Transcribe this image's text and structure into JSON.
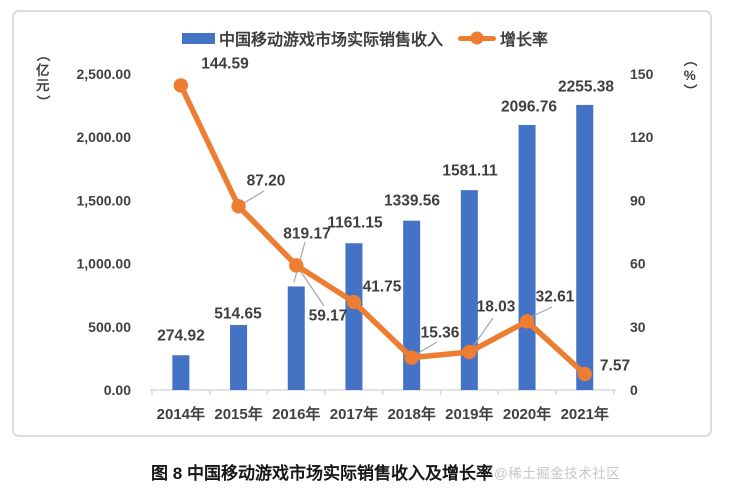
{
  "caption": "图 8 中国移动游戏市场实际销售收入及增长率",
  "watermark": "@稀土掘金技术社区",
  "chart_data": {
    "type": "combo",
    "title": "图 8 中国移动游戏市场实际销售收入及增长率",
    "categories": [
      "2014年",
      "2015年",
      "2016年",
      "2017年",
      "2018年",
      "2019年",
      "2020年",
      "2021年"
    ],
    "series": [
      {
        "name": "中国移动游戏市场实际销售收入",
        "type": "bar",
        "axis": "left",
        "color": "#4472C4",
        "values": [
          274.92,
          514.65,
          819.17,
          1161.15,
          1339.56,
          1581.11,
          2096.76,
          2255.38
        ]
      },
      {
        "name": "增长率",
        "type": "line",
        "axis": "right",
        "color": "#ED7D31",
        "values": [
          144.59,
          87.2,
          59.17,
          41.75,
          15.36,
          18.03,
          32.61,
          7.57
        ]
      }
    ],
    "left_axis": {
      "unit": "（亿元）",
      "min": 0,
      "max": 2500,
      "ticks": [
        "2,500.00",
        "2,000.00",
        "1,500.00",
        "1,000.00",
        "500.00",
        "0.00"
      ]
    },
    "right_axis": {
      "unit": "（%）",
      "min": 0,
      "max": 150,
      "ticks": [
        "150",
        "120",
        "90",
        "60",
        "30",
        "0"
      ]
    },
    "legend_position": "top",
    "grid": false,
    "data_labels": true,
    "colors": {
      "bar": "#4472C4",
      "line": "#ED7D31",
      "data_label": "#3F3F3F",
      "tick_label": "#404040",
      "axis_line": "#D9D9D9",
      "leader_line": "#A6A6A6"
    }
  }
}
